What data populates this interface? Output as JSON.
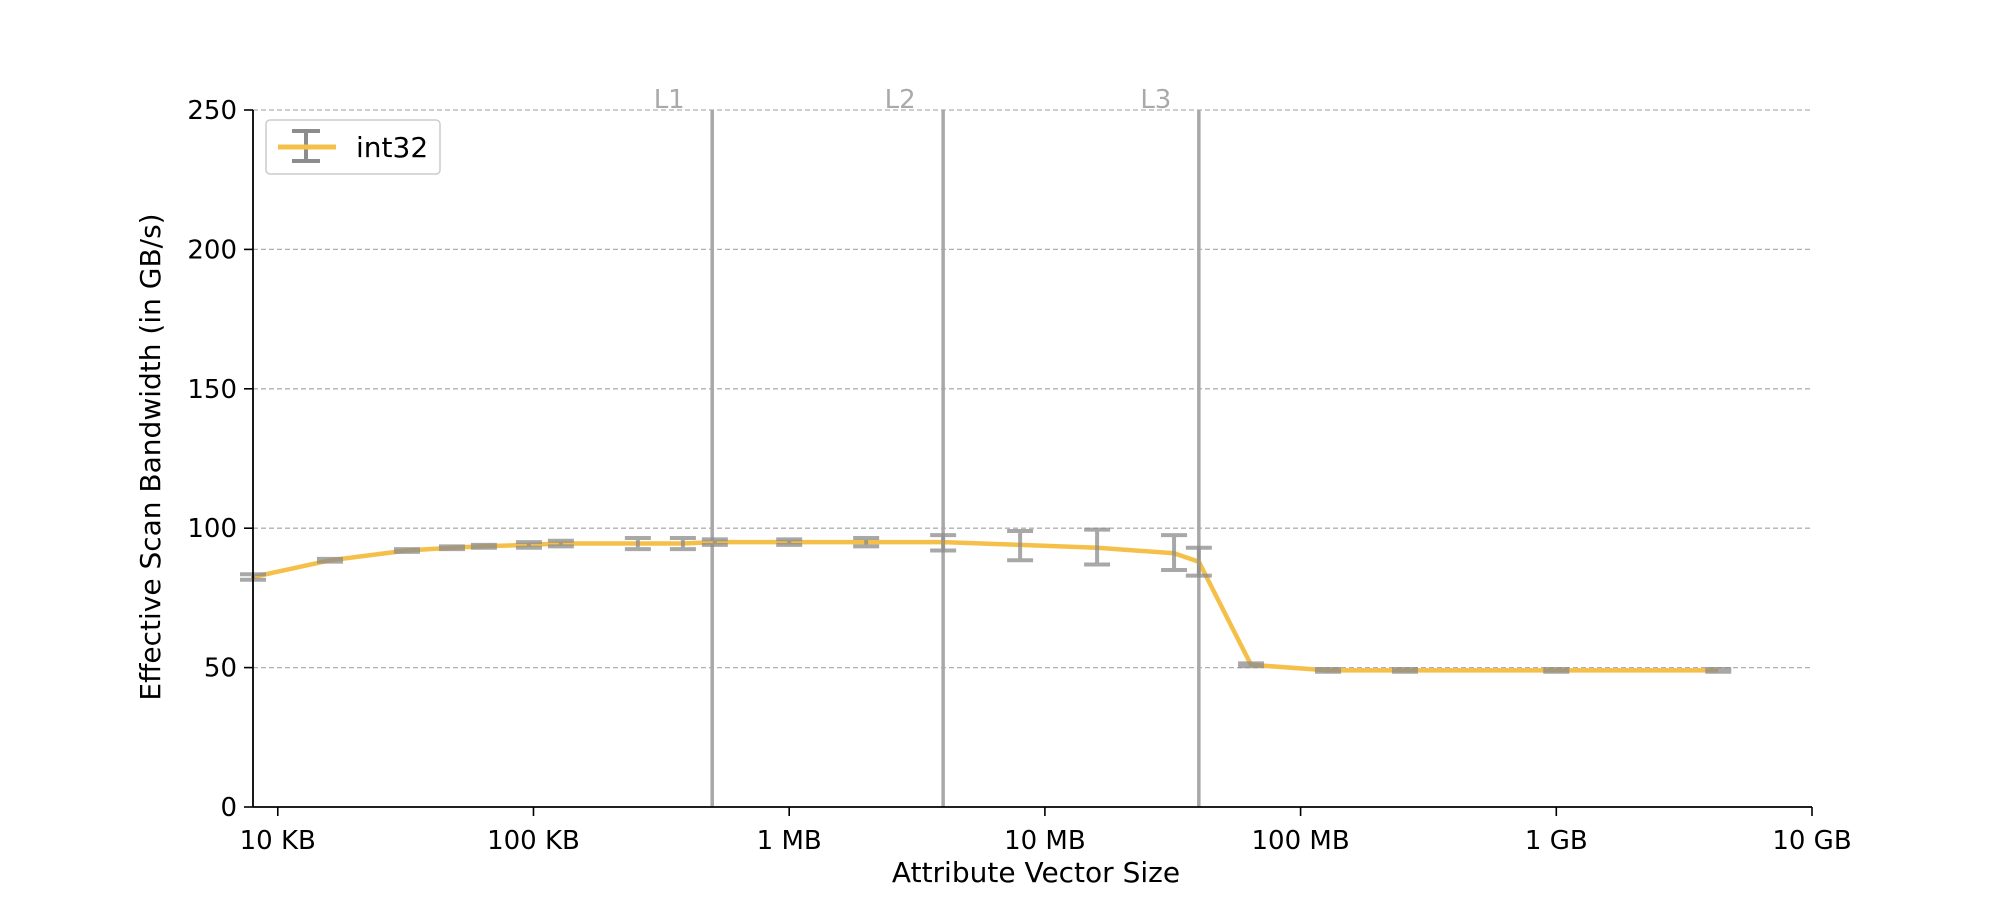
{
  "chart_data": {
    "type": "line",
    "xlabel": "Attribute Vector Size",
    "ylabel": "Effective Scan Bandwidth (in GB/s)",
    "x_scale": "log",
    "x_unit": "bytes",
    "xlim": [
      8000,
      10000000000
    ],
    "ylim": [
      0,
      250
    ],
    "grid": "horizontal-dashed",
    "legend_position": "top-left",
    "x_ticks": [
      {
        "value": 10000,
        "label": "10 KB"
      },
      {
        "value": 100000,
        "label": "100 KB"
      },
      {
        "value": 1000000,
        "label": "1 MB"
      },
      {
        "value": 10000000,
        "label": "10 MB"
      },
      {
        "value": 100000000,
        "label": "100 MB"
      },
      {
        "value": 1000000000,
        "label": "1 GB"
      },
      {
        "value": 10000000000,
        "label": "10 GB"
      }
    ],
    "y_ticks": [
      0,
      50,
      100,
      150,
      200,
      250
    ],
    "cache_lines": [
      {
        "label": "L1",
        "x": 500000
      },
      {
        "label": "L2",
        "x": 4000000
      },
      {
        "label": "L3",
        "x": 40000000
      }
    ],
    "series": [
      {
        "name": "int32",
        "color": "#f5c04a",
        "errorbar_color": "#8c8c8c",
        "points": [
          {
            "x": 8000,
            "y": 82.5,
            "lo": 81.5,
            "hi": 83.5
          },
          {
            "x": 16000,
            "y": 88.5,
            "lo": 88,
            "hi": 89
          },
          {
            "x": 32000,
            "y": 92,
            "lo": 91.5,
            "hi": 92.5
          },
          {
            "x": 48000,
            "y": 93,
            "lo": 92.5,
            "hi": 93.5
          },
          {
            "x": 64000,
            "y": 93.5,
            "lo": 93,
            "hi": 94
          },
          {
            "x": 96000,
            "y": 94,
            "lo": 93,
            "hi": 95
          },
          {
            "x": 128000,
            "y": 94.5,
            "lo": 93.5,
            "hi": 95.5
          },
          {
            "x": 256000,
            "y": 94.5,
            "lo": 92.5,
            "hi": 96.5
          },
          {
            "x": 384000,
            "y": 94.5,
            "lo": 92.5,
            "hi": 96.5
          },
          {
            "x": 512000,
            "y": 95,
            "lo": 94,
            "hi": 96
          },
          {
            "x": 1000000,
            "y": 95,
            "lo": 94,
            "hi": 96
          },
          {
            "x": 2000000,
            "y": 95,
            "lo": 93.5,
            "hi": 96.5
          },
          {
            "x": 4000000,
            "y": 95,
            "lo": 92,
            "hi": 97.5
          },
          {
            "x": 8000000,
            "y": 94,
            "lo": 88.5,
            "hi": 99
          },
          {
            "x": 16000000,
            "y": 93,
            "lo": 87,
            "hi": 99.5
          },
          {
            "x": 32000000,
            "y": 91,
            "lo": 85,
            "hi": 97.5
          },
          {
            "x": 40000000,
            "y": 88,
            "lo": 83,
            "hi": 93
          },
          {
            "x": 64000000,
            "y": 51,
            "lo": 50.5,
            "hi": 51.5
          },
          {
            "x": 128000000,
            "y": 49,
            "lo": 48.5,
            "hi": 49.5
          },
          {
            "x": 256000000,
            "y": 49,
            "lo": 48.5,
            "hi": 49.5
          },
          {
            "x": 1000000000,
            "y": 49,
            "lo": 48.5,
            "hi": 49.5
          },
          {
            "x": 4300000000,
            "y": 49,
            "lo": 48.5,
            "hi": 49.5
          }
        ]
      }
    ]
  }
}
